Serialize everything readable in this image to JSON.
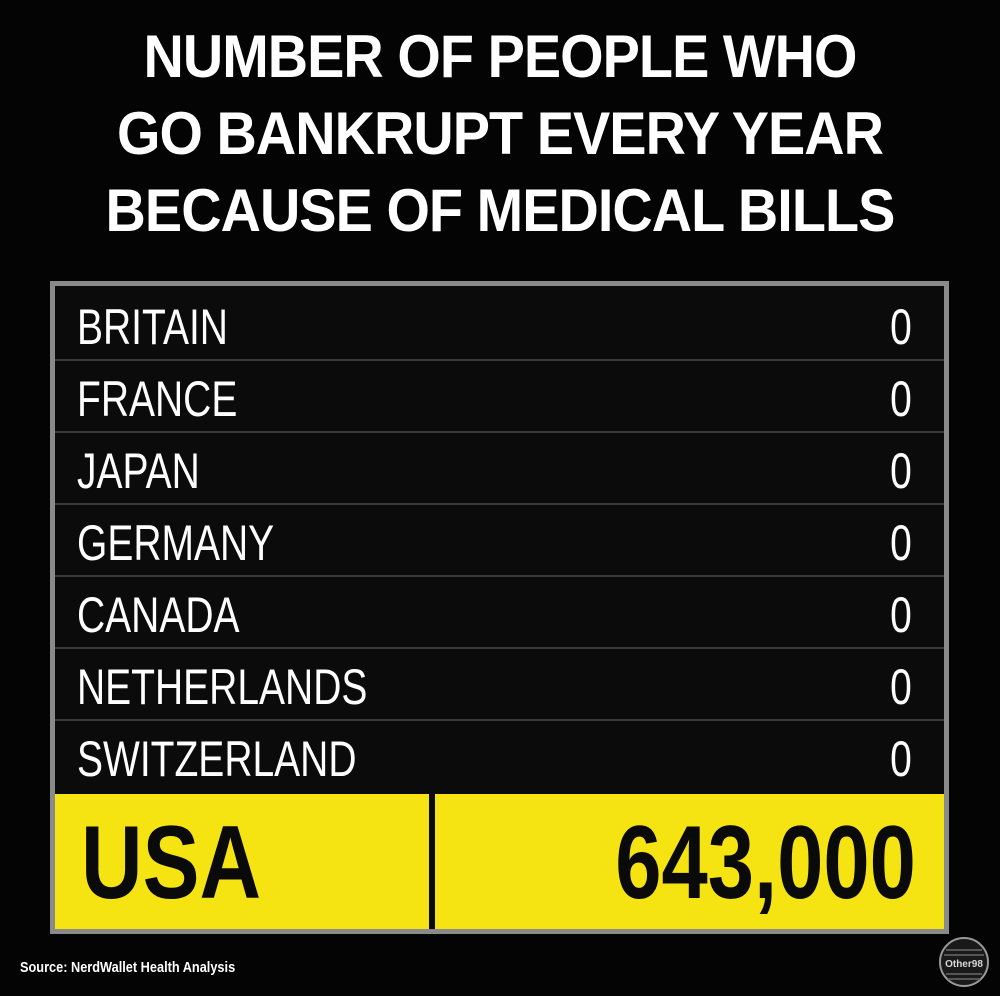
{
  "title": {
    "lines": [
      "NUMBER OF PEOPLE WHO",
      "GO BANKRUPT EVERY YEAR",
      "BECAUSE OF MEDICAL BILLS"
    ]
  },
  "source": "Source: NerdWallet Health Analysis",
  "logo_text": "Other98",
  "colors": {
    "background": "#040404",
    "highlight": "#f5e412",
    "frame": "#8a8a8a",
    "row_divider": "#3a3a3a",
    "text_light": "#ffffff",
    "text_dark": "#0a0a0a"
  },
  "chart_data": {
    "type": "table",
    "title": "NUMBER OF PEOPLE WHO GO BANKRUPT EVERY YEAR BECAUSE OF MEDICAL BILLS",
    "rows": [
      {
        "country": "BRITAIN",
        "value": "0"
      },
      {
        "country": "FRANCE",
        "value": "0"
      },
      {
        "country": "JAPAN",
        "value": "0"
      },
      {
        "country": "GERMANY",
        "value": "0"
      },
      {
        "country": "CANADA",
        "value": "0"
      },
      {
        "country": "NETHERLANDS",
        "value": "0"
      },
      {
        "country": "SWITZERLAND",
        "value": "0"
      }
    ],
    "highlight_row": {
      "country": "USA",
      "value": "643,000"
    }
  }
}
